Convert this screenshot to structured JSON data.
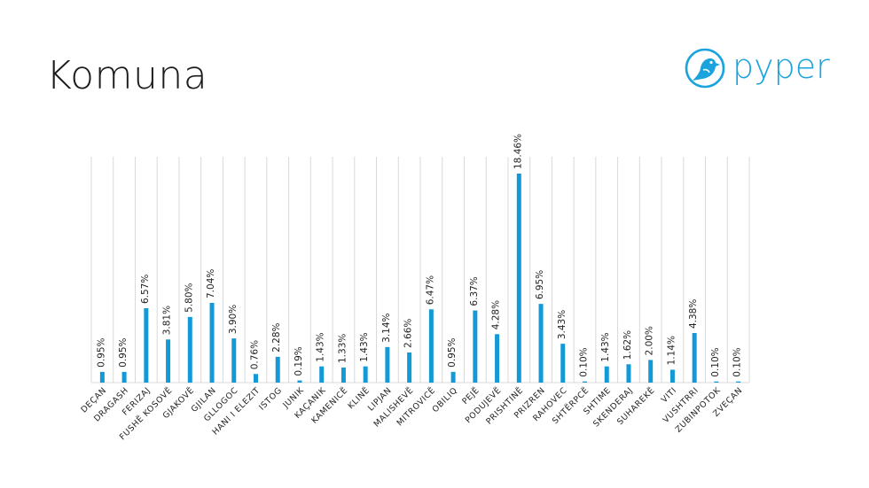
{
  "title": "Komuna",
  "logo": {
    "text": "pyper",
    "icon": "bird-icon",
    "color": "#1aa3dc"
  },
  "chart_data": {
    "type": "bar",
    "categories": [
      "DEÇAN",
      "DRAGASH",
      "FERIZAJ",
      "FUSHË KOSOVË",
      "GJAKOVË",
      "GJILAN",
      "GLLOGOC",
      "HANI I ELEZIT",
      "ISTOG",
      "JUNIK",
      "KAÇANIK",
      "KAMENICË",
      "KLINË",
      "LIPJAN",
      "MALISHEVË",
      "MITROVICË",
      "OBILIQ",
      "PEJË",
      "PODUJEVË",
      "PRISHTINË",
      "PRIZREN",
      "RAHOVEC",
      "SHTËRPCË",
      "SHTIME",
      "SKENDERAJ",
      "SUHAREKË",
      "VITI",
      "VUSHTRRI",
      "ZUBINPOTOK",
      "ZVEÇAN"
    ],
    "values": [
      0.95,
      0.95,
      6.57,
      3.81,
      5.8,
      7.04,
      3.9,
      0.76,
      2.28,
      0.19,
      1.43,
      1.33,
      1.43,
      3.14,
      2.66,
      6.47,
      0.95,
      6.37,
      4.28,
      18.46,
      6.95,
      3.43,
      0.1,
      1.43,
      1.62,
      2.0,
      1.14,
      4.38,
      0.1,
      0.1
    ],
    "labels": [
      "0.95%",
      "0.95%",
      "6.57%",
      "3.81%",
      "5.80%",
      "7.04%",
      "3.90%",
      "0.76%",
      "2.28%",
      "0.19%",
      "1.43%",
      "1.33%",
      "1.43%",
      "3.14%",
      "2.66%",
      "6.47%",
      "0.95%",
      "6.37%",
      "4.28%",
      "18.46%",
      "6.95%",
      "3.43%",
      "0.10%",
      "1.43%",
      "1.62%",
      "2.00%",
      "1.14%",
      "4.38%",
      "0.10%",
      "0.10%"
    ],
    "bar_color": "#139ad6",
    "grid": true,
    "grid_color": "#d9d9d9",
    "ylim": [
      0,
      18.46
    ]
  }
}
